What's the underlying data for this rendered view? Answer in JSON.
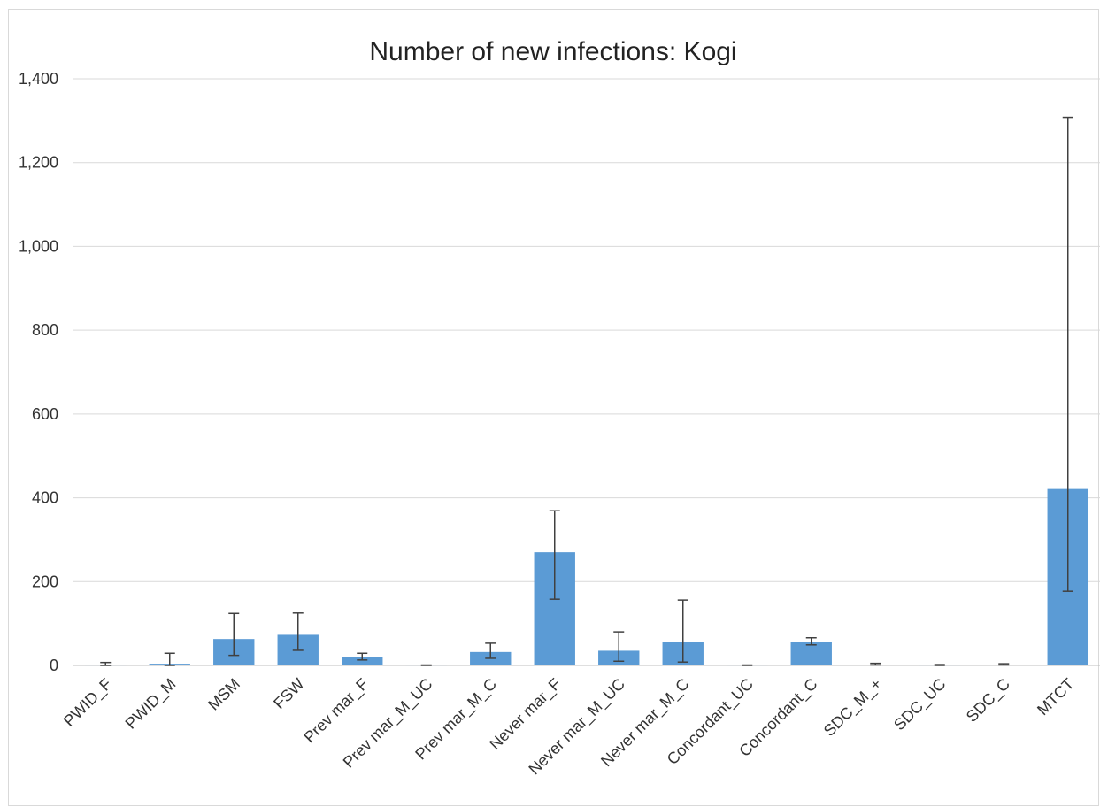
{
  "chart_data": {
    "type": "bar",
    "title": "Number of new infections: Kogi",
    "xlabel": "",
    "ylabel": "",
    "ylim": [
      0,
      1400
    ],
    "yticks": [
      0,
      200,
      400,
      600,
      800,
      1000,
      1200,
      1400
    ],
    "ytick_labels": [
      "0",
      "200",
      "400",
      "600",
      "800",
      "1,000",
      "1,200",
      "1,400"
    ],
    "grid": true,
    "legend": "none",
    "bar_color": "#5b9bd5",
    "error_bar_color": "#404040",
    "categories": [
      "PWID_F",
      "PWID_M",
      "MSM",
      "FSW",
      "Prev mar_F",
      "Prev mar_M_UC",
      "Prev mar_M_C",
      "Never mar_F",
      "Never mar_M_UC",
      "Never mar_M_C",
      "Concordant_UC",
      "Concordant_C",
      "SDC_M_+",
      "SDC_UC",
      "SDC_C",
      "MTCT"
    ],
    "values": [
      1,
      4,
      63,
      73,
      19,
      1,
      32,
      270,
      35,
      55,
      1,
      57,
      2,
      1,
      2,
      421
    ],
    "error_low": [
      0,
      0,
      24,
      36,
      13,
      0,
      17,
      158,
      10,
      8,
      0,
      49,
      1,
      0,
      1,
      177
    ],
    "error_high": [
      7,
      29,
      124,
      125,
      29,
      1,
      53,
      369,
      80,
      156,
      1,
      66,
      5,
      2,
      4,
      1308
    ]
  }
}
